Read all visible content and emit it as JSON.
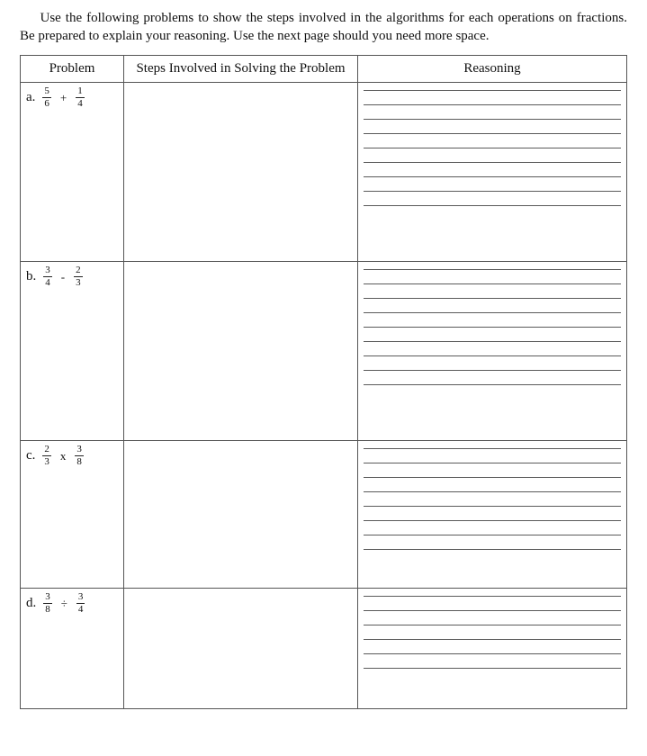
{
  "instructions": "Use the following problems to show the steps involved in the algorithms for each operations on fractions. Be prepared to explain your reasoning. Use the next page should you need more space.",
  "columns": {
    "problem": "Problem",
    "steps": "Steps Involved in Solving the Problem",
    "reasoning": "Reasoning"
  },
  "rows": [
    {
      "label": "a.",
      "left": {
        "num": "5",
        "den": "6"
      },
      "op": "+",
      "right": {
        "num": "1",
        "den": "4"
      },
      "reasoning_lines": 9,
      "size": "tall"
    },
    {
      "label": "b.",
      "left": {
        "num": "3",
        "den": "4"
      },
      "op": "-",
      "right": {
        "num": "2",
        "den": "3"
      },
      "reasoning_lines": 9,
      "size": "tall"
    },
    {
      "label": "c.",
      "left": {
        "num": "2",
        "den": "3"
      },
      "op": "x",
      "right": {
        "num": "3",
        "den": "8"
      },
      "reasoning_lines": 8,
      "size": "short"
    },
    {
      "label": "d.",
      "left": {
        "num": "3",
        "den": "8"
      },
      "op": "÷",
      "right": {
        "num": "3",
        "den": "4"
      },
      "reasoning_lines": 6,
      "size": "last"
    }
  ]
}
